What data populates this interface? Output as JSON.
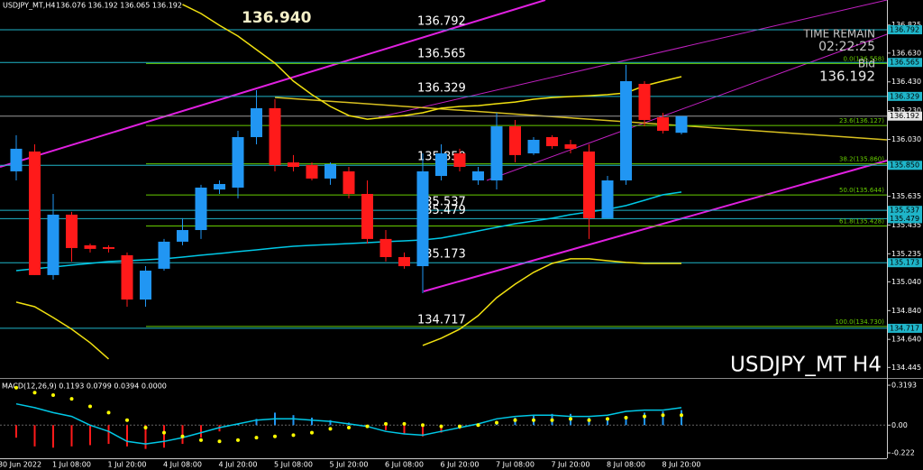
{
  "chart_data": [
    {
      "type": "candlestick",
      "title": "USDJPY_MT,H4",
      "subtitle": "136.076 136.192 136.065 136.192",
      "annotations": [
        "136.940",
        "TIME REMAIN",
        "02:22:25",
        "Bid",
        "USDJPY_MT H4"
      ],
      "categories": [
        "30 Jun 2022",
        null,
        null,
        "1 Jul 08:00",
        null,
        null,
        "1 Jul 20:00",
        null,
        null,
        "4 Jul 08:00",
        null,
        null,
        "4 Jul 20:00",
        null,
        null,
        "5 Jul 08:00",
        null,
        null,
        "5 Jul 20:00",
        null,
        null,
        "6 Jul 08:00",
        null,
        null,
        "6 Jul 20:00",
        null,
        null,
        "7 Jul 08:00",
        null,
        null,
        "7 Jul 20:00",
        null,
        null,
        "8 Jul 08:00",
        null,
        null,
        "8 Jul 20:00"
      ],
      "open": [
        135.808,
        135.946,
        135.087,
        135.507,
        135.294,
        135.281,
        135.225,
        134.917,
        135.131,
        135.319,
        135.4,
        135.682,
        135.695,
        136.046,
        136.247,
        135.87,
        135.852,
        135.758,
        135.808,
        135.651,
        135.338,
        135.212,
        135.149,
        135.776,
        135.933,
        135.745,
        135.745,
        136.121,
        135.933,
        136.046,
        135.996,
        135.946,
        135.482,
        135.745,
        136.416,
        136.184,
        136.076
      ],
      "high": [
        136.059,
        135.996,
        135.651,
        135.526,
        135.306,
        135.294,
        135.244,
        135.149,
        135.338,
        135.482,
        135.714,
        135.745,
        136.09,
        136.372,
        136.309,
        135.921,
        135.87,
        135.87,
        135.839,
        135.745,
        135.4,
        135.244,
        135.933,
        135.996,
        135.965,
        135.839,
        136.215,
        136.165,
        136.046,
        136.059,
        136.027,
        135.996,
        135.776,
        136.548,
        136.435,
        136.215,
        136.192
      ],
      "low": [
        135.745,
        135.087,
        135.055,
        135.181,
        135.244,
        135.244,
        134.867,
        134.867,
        135.118,
        135.294,
        135.338,
        135.651,
        135.62,
        135.996,
        135.808,
        135.808,
        135.745,
        135.714,
        135.62,
        135.306,
        135.181,
        135.131,
        134.961,
        135.745,
        135.808,
        135.714,
        135.682,
        135.87,
        135.921,
        135.965,
        135.933,
        135.338,
        135.482,
        135.714,
        136.121,
        136.071,
        136.065
      ],
      "close": [
        135.965,
        135.087,
        135.507,
        135.275,
        135.269,
        135.269,
        134.917,
        135.118,
        135.319,
        135.4,
        135.695,
        135.72,
        136.046,
        136.247,
        135.852,
        135.839,
        135.758,
        135.858,
        135.651,
        135.338,
        135.212,
        135.149,
        135.808,
        135.933,
        135.839,
        135.808,
        136.121,
        135.921,
        136.027,
        135.983,
        135.965,
        135.482,
        135.745,
        136.435,
        136.165,
        136.09,
        136.192
      ],
      "up_color": "#2196f3",
      "down_color": "#ff1a1a",
      "series": [
        {
          "color": "#00c8e6",
          "values": [
            135.118,
            135.131,
            135.143,
            135.156,
            135.168,
            135.181,
            135.187,
            135.193,
            135.2,
            135.212,
            135.225,
            135.237,
            135.25,
            135.262,
            135.275,
            135.287,
            135.294,
            135.3,
            135.306,
            135.312,
            135.319,
            135.325,
            135.331,
            135.344,
            135.369,
            135.394,
            135.419,
            135.444,
            135.463,
            135.482,
            135.507,
            135.526,
            135.544,
            135.57,
            135.607,
            135.645,
            135.664
          ]
        },
        {
          "color": "#f0e010",
          "values": [
            null,
            null,
            null,
            null,
            null,
            null,
            null,
            null,
            null,
            136.968,
            136.905,
            136.823,
            136.748,
            136.654,
            136.56,
            136.435,
            136.341,
            136.259,
            136.196,
            136.171,
            136.184,
            136.196,
            136.215,
            136.247,
            136.259,
            136.265,
            136.278,
            136.29,
            136.309,
            136.321,
            136.328,
            136.334,
            136.341,
            136.353,
            136.403,
            136.435,
            136.466
          ]
        },
        {
          "color": "#f0e010",
          "values": [
            134.899,
            134.867,
            134.792,
            134.711,
            134.617,
            134.504,
            null,
            null,
            null,
            null,
            null,
            null,
            null,
            null,
            null,
            null,
            null,
            null,
            null,
            null,
            null,
            null,
            134.598,
            134.648,
            134.711,
            134.805,
            134.93,
            135.024,
            135.106,
            135.168,
            135.2,
            135.2,
            135.187,
            135.175,
            135.168,
            135.168,
            135.168
          ]
        }
      ],
      "levels": [
        {
          "value": 136.792,
          "label": "136.792",
          "color": "#1fb5c9"
        },
        {
          "value": 136.565,
          "label": "136.565",
          "color": "#1fb5c9"
        },
        {
          "value": 136.329,
          "label": "136.329",
          "color": "#1fb5c9"
        },
        {
          "value": 135.85,
          "label": "135.850",
          "color": "#1fb5c9"
        },
        {
          "value": 135.537,
          "label": "135.537",
          "color": "#1fb5c9"
        },
        {
          "value": 135.479,
          "label": "135.479",
          "color": "#1fb5c9"
        },
        {
          "value": 135.173,
          "label": "135.173",
          "color": "#1fb5c9"
        },
        {
          "value": 134.717,
          "label": "134.717",
          "color": "#1fb5c9"
        }
      ],
      "fib_levels": [
        {
          "value": 136.558,
          "label": "0.0(136.558)"
        },
        {
          "value": 136.127,
          "label": "23.6(136.127)"
        },
        {
          "value": 135.86,
          "label": "38.2(135.860)"
        },
        {
          "value": 135.644,
          "label": "50.0(135.644)"
        },
        {
          "value": 135.428,
          "label": "61.8(135.428)"
        },
        {
          "value": 134.73,
          "label": "100.0(134.730)"
        }
      ],
      "fib_color": "#66cc00",
      "current_price": 136.192,
      "ylim": [
        134.378,
        136.999
      ],
      "yticks": [
        136.825,
        {
          "value": 136.63,
          "label": "136.630"
        },
        {
          "value": 136.43,
          "label": "136.430"
        },
        {
          "value": 136.23,
          "label": "136.230"
        },
        {
          "value": 136.03,
          "label": "136.030"
        },
        135.635,
        135.435,
        135.235,
        {
          "value": 135.04,
          "label": "135.040"
        },
        {
          "value": 134.84,
          "label": "134.840"
        },
        {
          "value": 134.64,
          "label": "134.640"
        },
        134.445
      ]
    },
    {
      "type": "bar",
      "title": "MACD(12,26,9) 0.1193 0.0799 0.0394 0.0000",
      "values": [
        -0.1,
        -0.17,
        -0.18,
        -0.17,
        -0.16,
        -0.15,
        -0.17,
        -0.19,
        -0.18,
        -0.15,
        -0.1,
        -0.05,
        0.01,
        0.05,
        0.1,
        0.08,
        0.06,
        0.04,
        0.02,
        0.0,
        -0.04,
        -0.07,
        -0.09,
        -0.06,
        -0.03,
        0.01,
        0.03,
        0.06,
        0.08,
        0.09,
        0.09,
        0.06,
        0.04,
        0.05,
        0.1,
        0.11,
        0.12
      ],
      "up_color": "#2196f3",
      "down_color": "#ff1a1a",
      "series": [
        {
          "color": "#00c8e6",
          "values": [
            0.17,
            0.14,
            0.1,
            0.07,
            0.0,
            -0.05,
            -0.13,
            -0.15,
            -0.13,
            -0.1,
            -0.06,
            -0.02,
            0.01,
            0.04,
            0.05,
            0.05,
            0.04,
            0.03,
            0.01,
            -0.01,
            -0.05,
            -0.07,
            -0.08,
            -0.05,
            -0.02,
            0.01,
            0.05,
            0.07,
            0.08,
            0.08,
            0.07,
            0.07,
            0.08,
            0.11,
            0.12,
            0.12,
            0.14
          ]
        },
        {
          "color": "#ffff00",
          "marker": "dot",
          "values": [
            0.3,
            0.26,
            0.24,
            0.21,
            0.15,
            0.1,
            0.04,
            -0.02,
            -0.06,
            -0.09,
            -0.12,
            -0.13,
            -0.12,
            -0.1,
            -0.09,
            -0.08,
            -0.06,
            -0.03,
            -0.02,
            -0.01,
            0.01,
            0.01,
            0.0,
            -0.01,
            -0.01,
            0.0,
            0.02,
            0.04,
            0.04,
            0.04,
            0.05,
            0.04,
            0.05,
            0.06,
            0.07,
            0.08,
            0.08
          ]
        }
      ],
      "ylim": [
        -0.265,
        0.37
      ],
      "yticks": [
        0.3193,
        {
          "value": 0,
          "label": "0.00"
        },
        -0.222
      ]
    }
  ]
}
